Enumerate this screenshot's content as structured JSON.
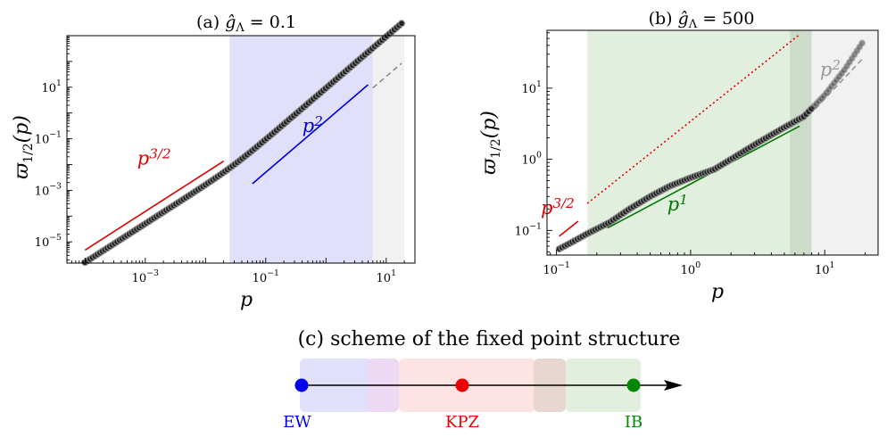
{
  "chart_data": [
    {
      "id": "a",
      "type": "scatter",
      "title": "(a) ĝ_Λ = 0.1",
      "title_parts": {
        "prefix": "(a) ",
        "symbol": "ĝ",
        "subscript": "Λ",
        "suffix": " = 0.1"
      },
      "xlabel": "p",
      "ylabel": "ϖ1/2(p)",
      "ylabel_parts": {
        "base": "ϖ",
        "subscript": "1/2",
        "arg": "(p)"
      },
      "xscale": "log",
      "yscale": "log",
      "xlim": [
        5e-05,
        30
      ],
      "ylim": [
        1.5e-06,
        1000
      ],
      "xticks": [
        {
          "label_base": "10",
          "label_exp": "−3",
          "value": 0.001
        },
        {
          "label_base": "10",
          "label_exp": "−1",
          "value": 0.1
        },
        {
          "label_base": "10",
          "label_exp": "1",
          "value": 10
        }
      ],
      "yticks": [
        {
          "label_base": "10",
          "label_exp": "−5",
          "value": 1e-05
        },
        {
          "label_base": "10",
          "label_exp": "−3",
          "value": 0.001
        },
        {
          "label_base": "10",
          "label_exp": "−1",
          "value": 0.1
        },
        {
          "label_base": "10",
          "label_exp": "1",
          "value": 10
        }
      ],
      "shaded_regions": [
        {
          "x_from": 0.025,
          "x_to": 6,
          "color": "#e0e0fa"
        },
        {
          "x_from": 6,
          "x_to": 20,
          "color": "#f1f1f1"
        }
      ],
      "data_series": {
        "x_from": 0.0001,
        "x_to": 18,
        "points": 130,
        "slope_low": 1.5,
        "slope_high": 2,
        "crossover": 0.03,
        "y_at_start": 1.6e-06,
        "marker_color": "#222222"
      },
      "reference_lines": [
        {
          "label_base": "p",
          "label_exp": "3/2",
          "color": "#dd0000",
          "dash": "",
          "x_from": 0.0001,
          "x_to": 0.02,
          "y_at_start": 4.8e-06,
          "slope": 1.5,
          "label_x": 0.0014,
          "label_y": 0.01
        },
        {
          "label_base": "p",
          "label_exp": "2",
          "color": "#0000dd",
          "dash": "",
          "x_from": 0.06,
          "x_to": 5,
          "y_at_start": 0.0018,
          "slope": 2,
          "label_x": 0.6,
          "label_y": 0.18
        },
        {
          "label_base": "",
          "label_exp": "",
          "color": "#888888",
          "dash": "6,4",
          "x_from": 6,
          "x_to": 18,
          "y_at_start": 9.4,
          "slope": 2,
          "label_x": 0,
          "label_y": 0
        }
      ]
    },
    {
      "id": "b",
      "type": "scatter",
      "title": "(b) ĝ_Λ = 500",
      "title_parts": {
        "prefix": "(b) ",
        "symbol": "ĝ",
        "subscript": "Λ",
        "suffix": " = 500"
      },
      "xlabel": "p",
      "ylabel": "ϖ1/2(p)",
      "ylabel_parts": {
        "base": "ϖ",
        "subscript": "1/2",
        "arg": "(p)"
      },
      "xscale": "log",
      "yscale": "log",
      "xlim": [
        0.085,
        25
      ],
      "ylim": [
        0.045,
        65
      ],
      "xticks": [
        {
          "label_base": "10",
          "label_exp": "−1",
          "value": 0.1
        },
        {
          "label_base": "10",
          "label_exp": "0",
          "value": 1
        },
        {
          "label_base": "10",
          "label_exp": "1",
          "value": 10
        }
      ],
      "yticks": [
        {
          "label_base": "10",
          "label_exp": "−1",
          "value": 0.1
        },
        {
          "label_base": "10",
          "label_exp": "0",
          "value": 1
        },
        {
          "label_base": "10",
          "label_exp": "1",
          "value": 10
        }
      ],
      "shaded_regions": [
        {
          "x_from": 0.17,
          "x_to": 5.5,
          "color": "#e2efdf"
        },
        {
          "x_from": 5.5,
          "x_to": 8,
          "color": "#cddcc9"
        },
        {
          "x_from": 8,
          "x_to": 25,
          "color": "#f1f1f1"
        }
      ],
      "data_series_points": [
        [
          0.105,
          0.055
        ],
        [
          0.13,
          0.068
        ],
        [
          0.17,
          0.09
        ],
        [
          0.25,
          0.13
        ],
        [
          0.35,
          0.2
        ],
        [
          0.5,
          0.3
        ],
        [
          0.7,
          0.42
        ],
        [
          1.0,
          0.55
        ],
        [
          1.5,
          0.72
        ],
        [
          2.0,
          1.0
        ],
        [
          3.0,
          1.6
        ],
        [
          4.0,
          2.2
        ],
        [
          5.0,
          2.8
        ],
        [
          7.0,
          4.0
        ],
        [
          10.0,
          8.0
        ],
        [
          14.0,
          18.0
        ],
        [
          19.0,
          43.0
        ]
      ],
      "data_series_meta": {
        "points": 120,
        "marker_color": "#222222",
        "x_fade": 8
      },
      "reference_lines": [
        {
          "label_base": "p",
          "label_exp": "3/2",
          "color": "#dd0000",
          "dash": "",
          "x_from": 0.105,
          "x_to": 0.145,
          "y_at_start": 0.083,
          "slope": 1.5,
          "label_x": 0.102,
          "label_y": 0.17
        },
        {
          "label_base": "",
          "label_exp": "",
          "color": "#dd0000",
          "dash": "2,3",
          "x_from": 0.17,
          "x_to": 6.5,
          "y_at_start": 0.24,
          "slope": 1.5,
          "label_x": 0,
          "label_y": 0
        },
        {
          "label_base": "p",
          "label_exp": "1",
          "color": "#007700",
          "dash": "",
          "x_from": 0.24,
          "x_to": 6.5,
          "y_at_start": 0.108,
          "slope": 1,
          "label_x": 0.8,
          "label_y": 0.19
        },
        {
          "label_base": "p",
          "label_exp": "2",
          "color": "#999999",
          "dash": "6,4",
          "x_from": 8.5,
          "x_to": 19,
          "y_at_start": 5.1,
          "slope": 2,
          "label_x": 11,
          "label_y": 15
        }
      ]
    }
  ],
  "scheme": {
    "title": "(c) scheme of the fixed point structure",
    "regions": [
      {
        "color": "#e0e0fa"
      },
      {
        "color": "#ecd9f3"
      },
      {
        "color": "#fde3e3"
      },
      {
        "color": "#e8d6d0"
      },
      {
        "color": "#e2efdf"
      }
    ],
    "points": [
      {
        "label": "EW",
        "color": "#0000ee"
      },
      {
        "label": "KPZ",
        "color": "#ee0000"
      },
      {
        "label": "IB",
        "color": "#008800"
      }
    ]
  }
}
